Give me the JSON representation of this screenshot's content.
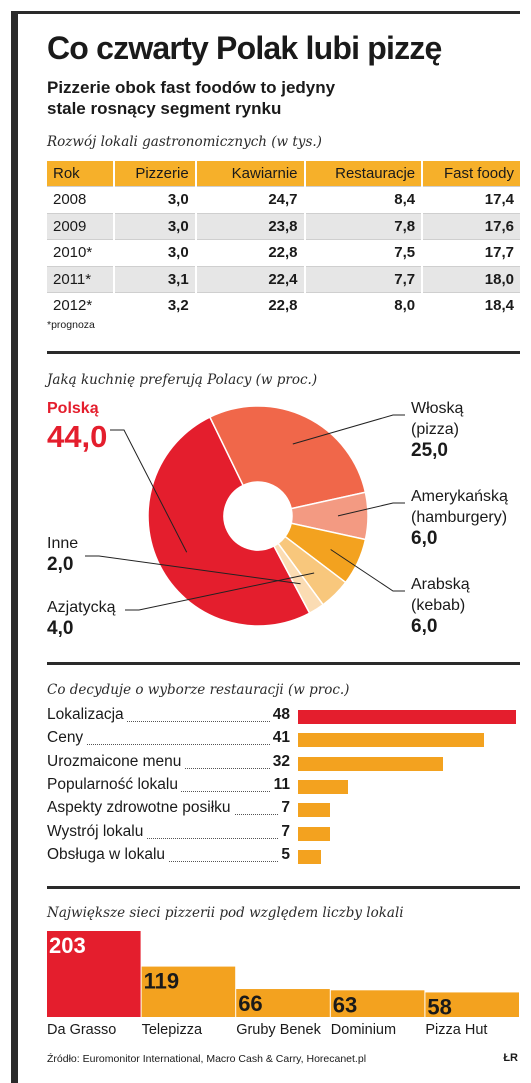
{
  "header": {
    "title": "Co czwarty Polak lubi pizzę",
    "subtitle": "Pizzerie obok fast foodów to jedyny stale rosnący segment rynku"
  },
  "colors": {
    "red": "#e41e2d",
    "orange": "#f3a21f",
    "salmon": "#f0674a",
    "light_salmon": "#f39a82",
    "pale": "#fbd9a8"
  },
  "table_section": {
    "title": "Rozwój lokali gastronomicznych (w tys.)",
    "note": "*prognoza"
  },
  "pie_section": {
    "title": "Jaką kuchnię preferują Polacy (w proc.)"
  },
  "bars_section": {
    "title": "Co decyduje o wyborze restauracji (w proc.)"
  },
  "columns_section": {
    "title": "Największe sieci pizzerii pod względem liczby lokali"
  },
  "footer": {
    "source": "Źródło: Euromonitor International, Macro Cash & Carry, Horecanet.pl",
    "logo": "ŁR"
  },
  "chart_data": [
    {
      "type": "table",
      "columns": [
        "Rok",
        "Pizzerie",
        "Kawiarnie",
        "Restauracje",
        "Fast foody"
      ],
      "rows": [
        [
          "2008",
          "3,0",
          "24,7",
          "8,4",
          "17,4"
        ],
        [
          "2009",
          "3,0",
          "23,8",
          "7,8",
          "17,6"
        ],
        [
          "2010*",
          "3,0",
          "22,8",
          "7,5",
          "17,7"
        ],
        [
          "2011*",
          "3,1",
          "22,4",
          "7,7",
          "18,0"
        ],
        [
          "2012*",
          "3,2",
          "22,8",
          "8,0",
          "18,4"
        ]
      ]
    },
    {
      "type": "pie",
      "slices": [
        {
          "label": "Polską",
          "value": 44.0,
          "display": "44,0",
          "color": "#e41e2d"
        },
        {
          "label": "Włoską\n(pizza)",
          "value": 25.0,
          "display": "25,0",
          "color": "#f0674a"
        },
        {
          "label": "Amerykańską\n(hamburgery)",
          "value": 6.0,
          "display": "6,0",
          "color": "#f39a82"
        },
        {
          "label": "Arabską\n(kebab)",
          "value": 6.0,
          "display": "6,0",
          "color": "#f3a21f"
        },
        {
          "label": "Azjatycką",
          "value": 4.0,
          "display": "4,0",
          "color": "#f8c77c"
        },
        {
          "label": "Inne",
          "value": 2.0,
          "display": "2,0",
          "color": "#fbdcb3"
        }
      ]
    },
    {
      "type": "bar",
      "orientation": "horizontal",
      "categories": [
        "Lokalizacja",
        "Ceny",
        "Urozmaicone menu",
        "Popularność lokalu",
        "Aspekty zdrowotne posiłku",
        "Wystrój lokalu",
        "Obsługa w lokalu"
      ],
      "values": [
        48,
        41,
        32,
        11,
        7,
        7,
        5
      ],
      "xlim": [
        0,
        48
      ]
    },
    {
      "type": "bar",
      "categories": [
        "Da Grasso",
        "Telepizza",
        "Gruby Benek",
        "Dominium",
        "Pizza Hut"
      ],
      "values": [
        203,
        119,
        66,
        63,
        58
      ],
      "ylim": [
        0,
        203
      ]
    }
  ]
}
